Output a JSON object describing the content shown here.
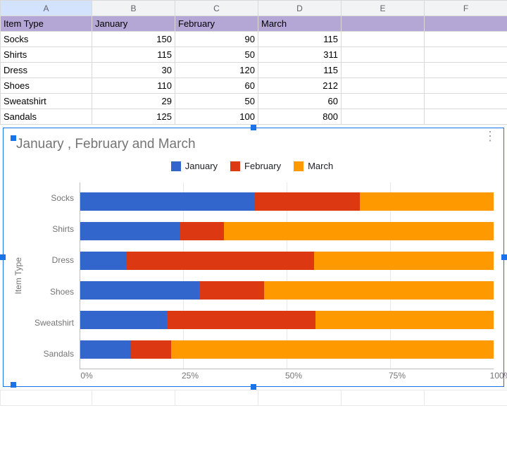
{
  "spreadsheet": {
    "column_headers": [
      "A",
      "B",
      "C",
      "D",
      "E",
      "F"
    ],
    "selected_column": "A",
    "header_row_bg": "#b4a7d6",
    "headers": {
      "item_type": "Item Type",
      "jan": "January",
      "feb": "February",
      "mar": "March"
    },
    "rows": [
      {
        "item": "Socks",
        "jan": 150,
        "feb": 90,
        "mar": 115
      },
      {
        "item": "Shirts",
        "jan": 115,
        "feb": 50,
        "mar": 311
      },
      {
        "item": "Dress",
        "jan": 30,
        "feb": 120,
        "mar": 115
      },
      {
        "item": "Shoes",
        "jan": 110,
        "feb": 60,
        "mar": 212
      },
      {
        "item": "Sweatshirt",
        "jan": 29,
        "feb": 50,
        "mar": 60
      },
      {
        "item": "Sandals",
        "jan": 125,
        "feb": 100,
        "mar": 800
      }
    ]
  },
  "chart": {
    "type": "stacked-bar-100pct",
    "title": "January , February  and March",
    "title_fontsize": 19,
    "title_color": "#757575",
    "y_axis_label": "Item Type",
    "series": [
      {
        "label": "January",
        "color": "#3366cc"
      },
      {
        "label": "February",
        "color": "#dc3912"
      },
      {
        "label": "March",
        "color": "#ff9900"
      }
    ],
    "categories": [
      "Socks",
      "Shirts",
      "Dress",
      "Shoes",
      "Sweatshirt",
      "Sandals"
    ],
    "percent_values": [
      [
        42.3,
        25.4,
        32.3
      ],
      [
        24.2,
        10.5,
        65.3
      ],
      [
        11.3,
        45.3,
        43.4
      ],
      [
        28.8,
        15.7,
        55.5
      ],
      [
        20.9,
        36.0,
        43.1
      ],
      [
        12.2,
        9.8,
        78.0
      ]
    ],
    "x_ticks": [
      "0%",
      "25%",
      "50%",
      "75%",
      "100%"
    ],
    "grid_color": "#e8e8e8",
    "axis_color": "#bdbdbd",
    "background_color": "#ffffff",
    "selection_border_color": "#1a73e8"
  }
}
